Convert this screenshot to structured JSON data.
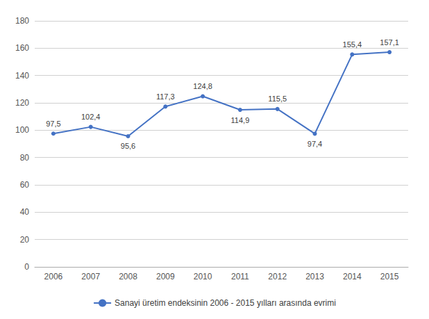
{
  "chart_data": {
    "type": "line",
    "categories": [
      "2006",
      "2007",
      "2008",
      "2009",
      "2010",
      "2011",
      "2012",
      "2013",
      "2014",
      "2015"
    ],
    "series": [
      {
        "name": "Sanayi üretim endeksinin 2006 - 2015 yılları arasında evrimi",
        "color": "#4472C4",
        "marker": "circle",
        "values": [
          97.5,
          102.4,
          95.6,
          117.3,
          124.8,
          114.9,
          115.5,
          97.4,
          155.4,
          157.1
        ],
        "value_labels": [
          "97,5",
          "102,4",
          "95,6",
          "117,3",
          "124,8",
          "114,9",
          "115,5",
          "97,4",
          "155,4",
          "157,1"
        ]
      }
    ],
    "ylim": [
      0,
      180
    ],
    "yticks": [
      0,
      20,
      40,
      60,
      80,
      100,
      120,
      140,
      160,
      180
    ],
    "grid": true,
    "legend": "bottom",
    "data_labels": true
  }
}
